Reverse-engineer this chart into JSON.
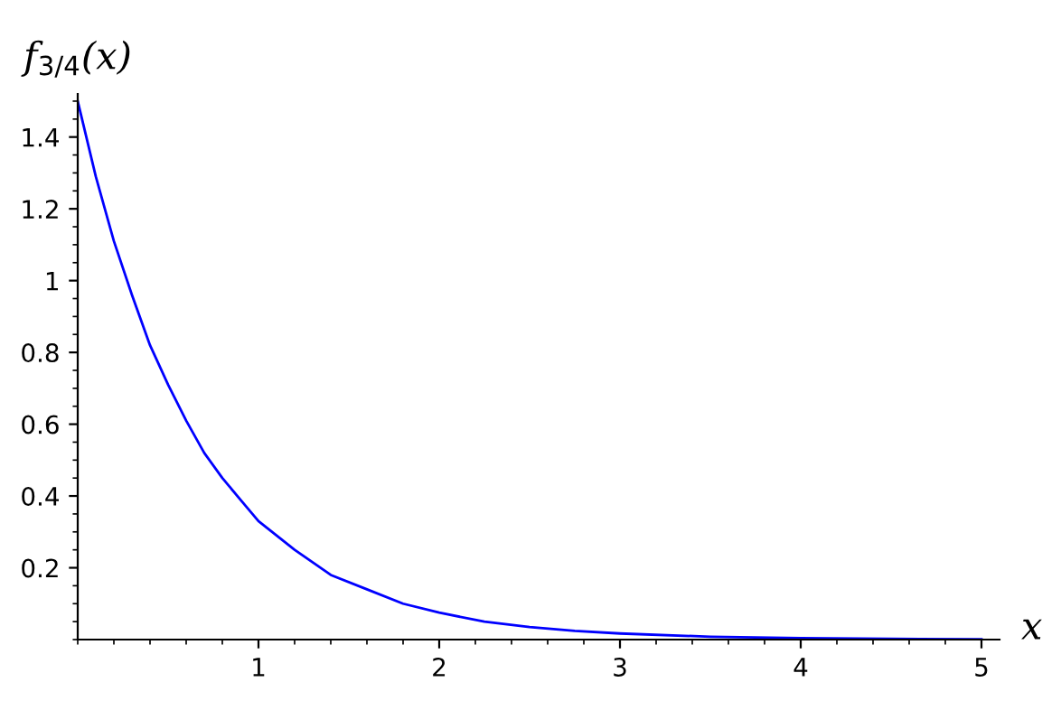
{
  "chart_data": {
    "type": "line",
    "xlabel": "x",
    "ylabel": "f$_{3/4}$(x)",
    "x": [
      0,
      0.1,
      0.2,
      0.3,
      0.4,
      0.5,
      0.6,
      0.7,
      0.8,
      0.9,
      1.0,
      1.2,
      1.4,
      1.6,
      1.8,
      2.0,
      2.25,
      2.5,
      2.75,
      3.0,
      3.5,
      4.0,
      4.5,
      5.0
    ],
    "series": [
      {
        "color": "#0000ff",
        "values": [
          1.5,
          1.29,
          1.11,
          0.96,
          0.82,
          0.71,
          0.61,
          0.52,
          0.45,
          0.39,
          0.33,
          0.25,
          0.18,
          0.14,
          0.1,
          0.075,
          0.05,
          0.035,
          0.024,
          0.017,
          0.008,
          0.004,
          0.002,
          0.001
        ]
      }
    ],
    "xlim": [
      0,
      5.1
    ],
    "ylim": [
      0,
      1.52
    ],
    "xticks": [
      1,
      2,
      3,
      4,
      5
    ],
    "yticks": [
      0.2,
      0.4,
      0.6,
      0.8,
      1,
      1.2,
      1.4
    ],
    "grid": false,
    "legend": false,
    "marker": "none",
    "line_style": "solid"
  }
}
